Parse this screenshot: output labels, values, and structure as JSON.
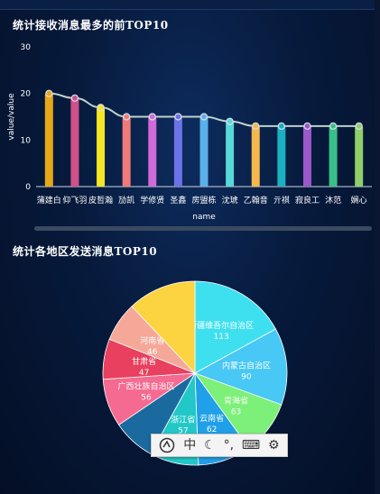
{
  "sections": {
    "receive_title": "统计接收消息最多的前TOP10",
    "send_title": "统计各地区发送消息TOP10"
  },
  "chart_data": [
    {
      "type": "bar",
      "title": "统计接收消息最多的前TOP10",
      "xlabel": "name",
      "ylabel": "value/value",
      "ylim": [
        0,
        30
      ],
      "yticks": [
        0,
        10,
        20,
        30
      ],
      "grid": false,
      "categories": [
        "蒲建白",
        "仰飞羽",
        "皮哲瀚",
        "劢凯",
        "学修贤",
        "圣鑫",
        "房盟栋",
        "沈琥",
        "乙翰音",
        "亓祺",
        "寂良工",
        "沐范",
        "娴心"
      ],
      "values": [
        20,
        19,
        17,
        15,
        15,
        15,
        15,
        14,
        13,
        13,
        13,
        13,
        13
      ],
      "line_color": "#f5c97a",
      "bar_colors": [
        "#e6a817",
        "#d0508a",
        "#f5e623",
        "#f07a7a",
        "#d06ad8",
        "#6b74e6",
        "#5ab0e8",
        "#58d8d8",
        "#f5b84e",
        "#1ab0c0",
        "#9a58c8",
        "#39c088",
        "#8fd06a"
      ]
    },
    {
      "type": "pie",
      "title": "统计各地区发送消息TOP10",
      "slices": [
        {
          "label": "新疆维吾尔自治区",
          "value": 113,
          "color": "#3ee0f0"
        },
        {
          "label": "内蒙古自治区",
          "value": 90,
          "color": "#47c8f5"
        },
        {
          "label": "青海省",
          "value": 63,
          "color": "#7df07a"
        },
        {
          "label": "云南省",
          "value": 62,
          "color": "#1fa0e8"
        },
        {
          "label": "浙江省",
          "value": 57,
          "color": "#22c8c8"
        },
        {
          "label": "",
          "value": 50,
          "color": "#1a6aa0"
        },
        {
          "label": "广西壮族自治区",
          "value": 56,
          "color": "#f56a90"
        },
        {
          "label": "甘肃省",
          "value": 47,
          "color": "#e8405e"
        },
        {
          "label": "河南省",
          "value": 46,
          "color": "#f5a898"
        },
        {
          "label": "",
          "value": 80,
          "color": "#fcd340"
        }
      ]
    }
  ],
  "ime_toolbar": {
    "chinese_label": "中",
    "moon_glyph": "☾",
    "punct_glyph": "°,",
    "keyboard_glyph": "⌨",
    "settings_glyph": "⚙"
  }
}
